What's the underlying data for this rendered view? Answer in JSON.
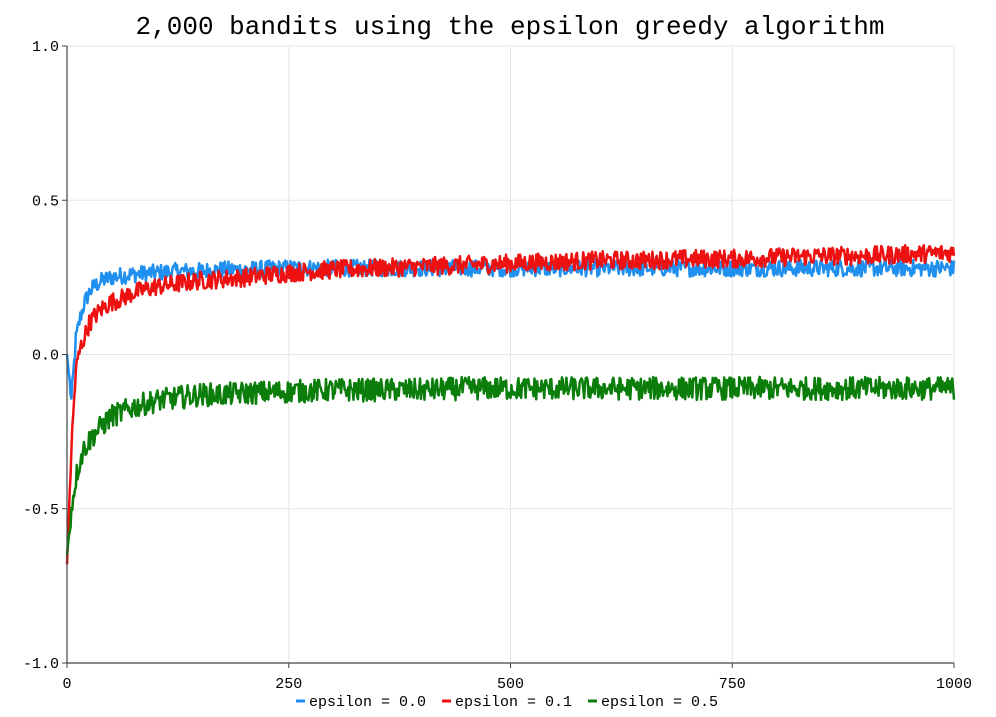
{
  "chart_data": {
    "type": "line",
    "title": "2,000 bandits using the epsilon greedy algorithm",
    "xlabel": "",
    "ylabel": "",
    "xlim": [
      0,
      1000
    ],
    "ylim": [
      -1.0,
      1.0
    ],
    "grid": true,
    "legend": "bottom-center",
    "x_ticks": [
      "0",
      "250",
      "500",
      "750",
      "1000"
    ],
    "y_ticks": [
      "1.0",
      "0.5",
      "0.0",
      "-0.5",
      "-1.0"
    ],
    "x": [
      0,
      5,
      10,
      15,
      20,
      25,
      30,
      40,
      50,
      60,
      75,
      100,
      125,
      150,
      175,
      200,
      250,
      300,
      350,
      400,
      450,
      500,
      550,
      600,
      650,
      700,
      750,
      800,
      850,
      900,
      950,
      1000
    ],
    "series": [
      {
        "name": "epsilon = 0.0",
        "color": "#1f8ff0",
        "values": [
          0.0,
          -0.15,
          0.05,
          0.12,
          0.17,
          0.2,
          0.22,
          0.24,
          0.25,
          0.255,
          0.26,
          0.265,
          0.27,
          0.27,
          0.275,
          0.275,
          0.28,
          0.28,
          0.28,
          0.28,
          0.28,
          0.28,
          0.28,
          0.28,
          0.28,
          0.28,
          0.28,
          0.28,
          0.28,
          0.28,
          0.28,
          0.28
        ]
      },
      {
        "name": "epsilon = 0.1",
        "color": "#ee1111",
        "values": [
          -0.68,
          -0.3,
          -0.05,
          0.02,
          0.06,
          0.1,
          0.12,
          0.15,
          0.17,
          0.18,
          0.2,
          0.22,
          0.23,
          0.24,
          0.245,
          0.25,
          0.265,
          0.275,
          0.28,
          0.285,
          0.29,
          0.295,
          0.3,
          0.305,
          0.305,
          0.31,
          0.31,
          0.315,
          0.32,
          0.32,
          0.325,
          0.33
        ]
      },
      {
        "name": "epsilon = 0.5",
        "color": "#0a7d0a",
        "values": [
          -0.65,
          -0.5,
          -0.4,
          -0.34,
          -0.3,
          -0.28,
          -0.26,
          -0.23,
          -0.2,
          -0.19,
          -0.17,
          -0.15,
          -0.14,
          -0.13,
          -0.13,
          -0.125,
          -0.12,
          -0.115,
          -0.115,
          -0.115,
          -0.11,
          -0.11,
          -0.11,
          -0.11,
          -0.11,
          -0.11,
          -0.11,
          -0.11,
          -0.11,
          -0.11,
          -0.11,
          -0.11
        ]
      }
    ]
  }
}
